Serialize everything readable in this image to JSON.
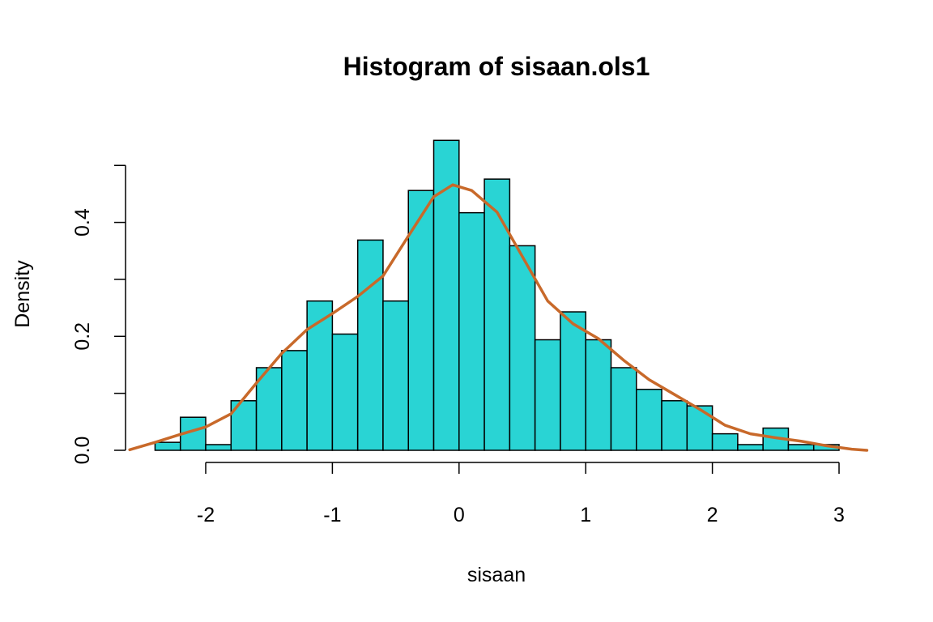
{
  "chart_data": {
    "type": "bar",
    "title": "Histogram of sisaan.ols1",
    "xlabel": "sisaan",
    "ylabel": "Density",
    "bins": [
      {
        "x0": -2.4,
        "x1": -2.2,
        "density": 0.014
      },
      {
        "x0": -2.2,
        "x1": -2.0,
        "density": 0.058
      },
      {
        "x0": -2.0,
        "x1": -1.8,
        "density": 0.01
      },
      {
        "x0": -1.8,
        "x1": -1.6,
        "density": 0.087
      },
      {
        "x0": -1.6,
        "x1": -1.4,
        "density": 0.145
      },
      {
        "x0": -1.4,
        "x1": -1.2,
        "density": 0.175
      },
      {
        "x0": -1.2,
        "x1": -1.0,
        "density": 0.262
      },
      {
        "x0": -1.0,
        "x1": -0.8,
        "density": 0.204
      },
      {
        "x0": -0.8,
        "x1": -0.6,
        "density": 0.369
      },
      {
        "x0": -0.6,
        "x1": -0.4,
        "density": 0.262
      },
      {
        "x0": -0.4,
        "x1": -0.2,
        "density": 0.456
      },
      {
        "x0": -0.2,
        "x1": 0.0,
        "density": 0.544
      },
      {
        "x0": 0.0,
        "x1": 0.2,
        "density": 0.417
      },
      {
        "x0": 0.2,
        "x1": 0.4,
        "density": 0.476
      },
      {
        "x0": 0.4,
        "x1": 0.6,
        "density": 0.359
      },
      {
        "x0": 0.6,
        "x1": 0.8,
        "density": 0.194
      },
      {
        "x0": 0.8,
        "x1": 1.0,
        "density": 0.243
      },
      {
        "x0": 1.0,
        "x1": 1.2,
        "density": 0.194
      },
      {
        "x0": 1.2,
        "x1": 1.4,
        "density": 0.145
      },
      {
        "x0": 1.4,
        "x1": 1.6,
        "density": 0.107
      },
      {
        "x0": 1.6,
        "x1": 1.8,
        "density": 0.087
      },
      {
        "x0": 1.8,
        "x1": 2.0,
        "density": 0.078
      },
      {
        "x0": 2.0,
        "x1": 2.2,
        "density": 0.029
      },
      {
        "x0": 2.2,
        "x1": 2.4,
        "density": 0.01
      },
      {
        "x0": 2.4,
        "x1": 2.6,
        "density": 0.039
      },
      {
        "x0": 2.6,
        "x1": 2.8,
        "density": 0.01
      },
      {
        "x0": 2.8,
        "x1": 3.0,
        "density": 0.01
      }
    ],
    "density_curve": {
      "x": [
        -2.6,
        -2.4,
        -2.2,
        -2.0,
        -1.8,
        -1.6,
        -1.4,
        -1.2,
        -1.0,
        -0.8,
        -0.6,
        -0.4,
        -0.2,
        -0.05,
        0.1,
        0.3,
        0.5,
        0.7,
        0.9,
        1.1,
        1.3,
        1.5,
        1.7,
        1.9,
        2.1,
        2.3,
        2.5,
        2.7,
        2.9,
        3.1,
        3.22
      ],
      "y": [
        0.001,
        0.014,
        0.028,
        0.041,
        0.064,
        0.118,
        0.17,
        0.212,
        0.24,
        0.27,
        0.306,
        0.376,
        0.445,
        0.466,
        0.456,
        0.418,
        0.34,
        0.262,
        0.222,
        0.196,
        0.158,
        0.124,
        0.098,
        0.072,
        0.044,
        0.029,
        0.022,
        0.016,
        0.008,
        0.002,
        0.0
      ]
    },
    "bar_fill": "#29d4d4",
    "curve_color": "#c8692a",
    "xlim": [
      -2.6,
      3.22
    ],
    "ylim": [
      0,
      0.55
    ],
    "xticks": [
      -2,
      -1,
      0,
      1,
      2,
      3
    ],
    "xtick_labels": [
      "-2",
      "-1",
      "0",
      "1",
      "2",
      "3"
    ],
    "yticks": [
      0.0,
      0.1,
      0.2,
      0.3,
      0.4,
      0.5
    ],
    "ytick_labels": [
      "0.0",
      "",
      "0.2",
      "",
      "0.4",
      ""
    ],
    "grid": false
  }
}
